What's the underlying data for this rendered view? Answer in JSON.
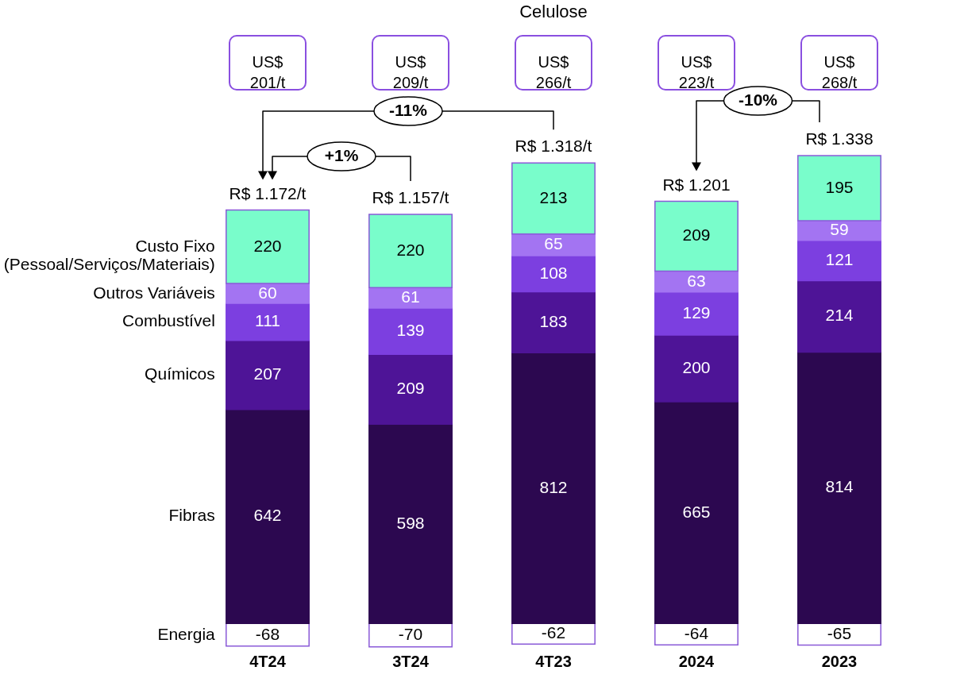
{
  "chart_data": {
    "type": "bar",
    "title": "Celulose",
    "stacked": true,
    "data_labels": true,
    "categories": [
      "4T24",
      "3T24",
      "4T23",
      "2024",
      "2023"
    ],
    "series": [
      {
        "name": "Energia",
        "color": "#ffffff",
        "values": [
          -68,
          -70,
          -62,
          -64,
          -65
        ]
      },
      {
        "name": "Fibras",
        "color": "#2c0850",
        "values": [
          642,
          598,
          812,
          665,
          814
        ]
      },
      {
        "name": "Químicos",
        "color": "#4e1497",
        "values": [
          207,
          209,
          183,
          200,
          214
        ]
      },
      {
        "name": "Combustível",
        "color": "#7c3fe0",
        "values": [
          111,
          139,
          108,
          129,
          121
        ]
      },
      {
        "name": "Outros Variáveis",
        "color": "#a374f2",
        "values": [
          60,
          61,
          65,
          63,
          59
        ]
      },
      {
        "name": "Custo Fixo\n(Pessoal/Serviços/Materiais)",
        "color": "#79fdcb",
        "values": [
          220,
          220,
          213,
          209,
          195
        ]
      }
    ],
    "totals": [
      "R$ 1.172/t",
      "R$ 1.157/t",
      "R$ 1.318/t",
      "R$ 1.201",
      "R$ 1.338"
    ],
    "annotations": [
      "US$\n201/t",
      "US$\n209/t",
      "US$\n266/t",
      "US$\n223/t",
      "US$\n268/t",
      "-11%",
      "+1%",
      "-10%"
    ]
  }
}
